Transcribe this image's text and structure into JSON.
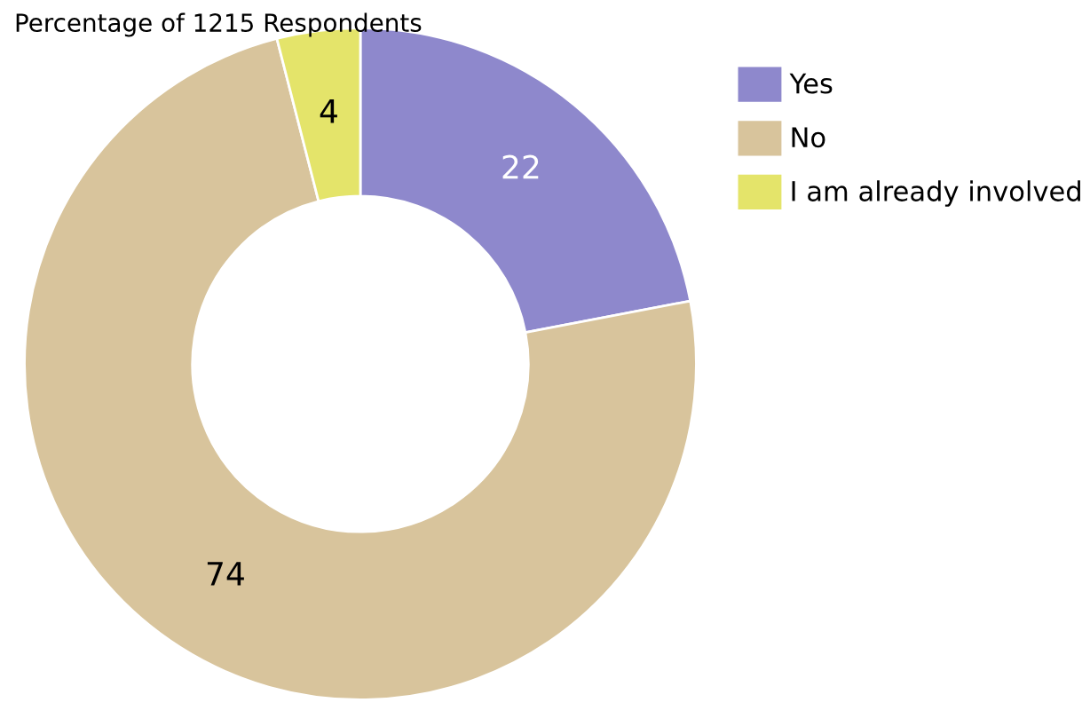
{
  "chart_data": {
    "type": "donut",
    "subtitle": "Percentage of 1215 Respondents",
    "categories": [
      "Yes",
      "No",
      "I am already involved"
    ],
    "values": [
      22,
      74,
      4
    ],
    "colors": [
      "#8e88cc",
      "#d8c49c",
      "#e4e46a"
    ],
    "data_labels": true,
    "legend": "top right"
  }
}
